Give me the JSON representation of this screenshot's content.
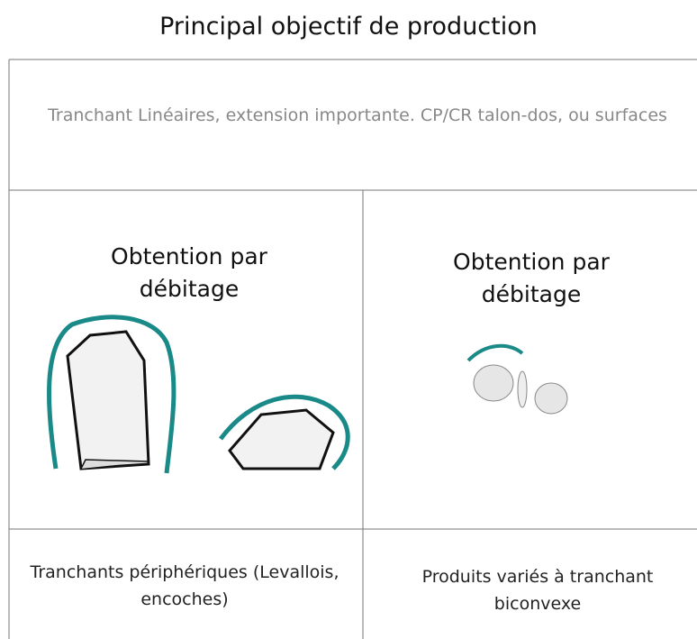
{
  "title": "Principal objectif de production",
  "table": {
    "header": "Tranchant Linéaires, extension importante. CP/CR talon-dos, ou surfaces",
    "cells": [
      {
        "heading": "Obtention par débitage",
        "caption": "Tranchants périphériques (Levallois, encoches)"
      },
      {
        "heading": "Obtention par débitage",
        "caption": "Produits variés à tranchant biconvexe"
      }
    ]
  }
}
